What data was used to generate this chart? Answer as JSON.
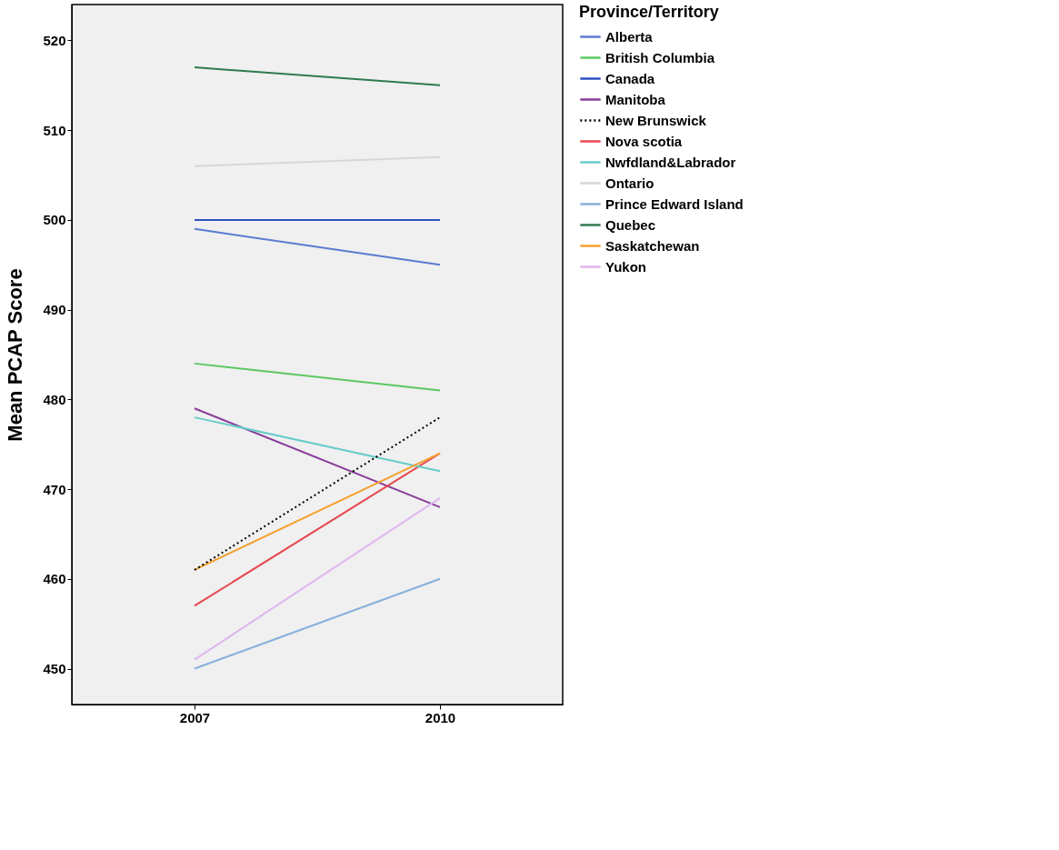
{
  "chart_data": {
    "type": "line",
    "ylabel": "Mean PCAP Score",
    "legend_title": "Province/Territory",
    "legend": "right",
    "grid": false,
    "categories": [
      "2007",
      "2010"
    ],
    "ylim": [
      446,
      524
    ],
    "yticks": [
      450,
      460,
      470,
      480,
      490,
      500,
      510,
      520
    ],
    "series": [
      {
        "name": "Alberta",
        "color": "#5b7bd0",
        "values": [
          499,
          495
        ]
      },
      {
        "name": "British Columbia",
        "color": "#5cc862",
        "values": [
          484,
          481
        ]
      },
      {
        "name": "Canada",
        "color": "#3050c0",
        "values": [
          500,
          500
        ]
      },
      {
        "name": "Manitoba",
        "color": "#8a3d9a",
        "values": [
          479,
          468
        ]
      },
      {
        "name": "New Brunswick",
        "color": "#000000",
        "values": [
          461,
          478
        ],
        "line_style": "dotted"
      },
      {
        "name": "Nova scotia",
        "color": "#e8474f",
        "values": [
          457,
          474
        ]
      },
      {
        "name": "Nwfdland&Labrador",
        "color": "#66ccc8",
        "values": [
          478,
          472
        ]
      },
      {
        "name": "Ontario",
        "color": "#d6d6d6",
        "values": [
          506,
          507
        ]
      },
      {
        "name": "Prince Edward Island",
        "color": "#88b0dc",
        "values": [
          450,
          460
        ]
      },
      {
        "name": "Quebec",
        "color": "#2e7a50",
        "values": [
          517,
          515
        ]
      },
      {
        "name": "Saskatchewan",
        "color": "#f5a030",
        "values": [
          461,
          474
        ]
      },
      {
        "name": "Yukon",
        "color": "#e0b6ee",
        "values": [
          451,
          469
        ]
      }
    ]
  }
}
